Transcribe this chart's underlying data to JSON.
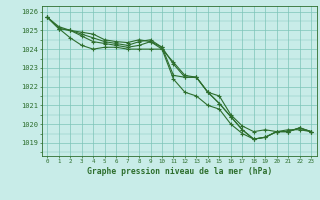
{
  "title": "Graphe pression niveau de la mer (hPa)",
  "bg_color": "#c8ece8",
  "grid_color": "#7dc4b8",
  "line_color": "#2d6e2d",
  "xlim": [
    -0.5,
    23.5
  ],
  "ylim": [
    1018.3,
    1026.3
  ],
  "yticks": [
    1019,
    1020,
    1021,
    1022,
    1023,
    1024,
    1025,
    1026
  ],
  "xticks": [
    0,
    1,
    2,
    3,
    4,
    5,
    6,
    7,
    8,
    9,
    10,
    11,
    12,
    13,
    14,
    15,
    16,
    17,
    18,
    19,
    20,
    21,
    22,
    23
  ],
  "series": [
    [
      1025.7,
      1025.1,
      1025.0,
      1024.8,
      1024.6,
      1024.4,
      1024.3,
      1024.2,
      1024.4,
      1024.5,
      1024.1,
      1023.2,
      1022.5,
      1022.5,
      1021.7,
      1021.1,
      1020.4,
      1019.7,
      1019.2,
      1019.3,
      1019.6,
      1019.6,
      1019.8,
      1019.6
    ],
    [
      1025.7,
      1025.1,
      1025.0,
      1024.7,
      1024.4,
      1024.3,
      1024.2,
      1024.1,
      1024.2,
      1024.4,
      1024.0,
      1023.3,
      1022.6,
      1022.5,
      1021.7,
      1021.1,
      1020.4,
      1019.7,
      1019.2,
      1019.3,
      1019.6,
      1019.6,
      1019.8,
      1019.6
    ],
    [
      1025.7,
      1025.1,
      1024.6,
      1024.2,
      1024.0,
      1024.1,
      1024.1,
      1024.0,
      1024.0,
      1024.0,
      1024.0,
      1022.4,
      1021.7,
      1021.5,
      1021.0,
      1020.8,
      1020.0,
      1019.5,
      1019.2,
      1019.3,
      1019.6,
      1019.6,
      1019.8,
      1019.6
    ],
    [
      1025.7,
      1025.2,
      1025.0,
      1024.9,
      1024.8,
      1024.5,
      1024.4,
      1024.35,
      1024.5,
      1024.4,
      1024.1,
      1022.6,
      1022.5,
      1022.5,
      1021.7,
      1021.5,
      1020.5,
      1019.9,
      1019.6,
      1019.7,
      1019.6,
      1019.7,
      1019.7,
      1019.6
    ]
  ]
}
